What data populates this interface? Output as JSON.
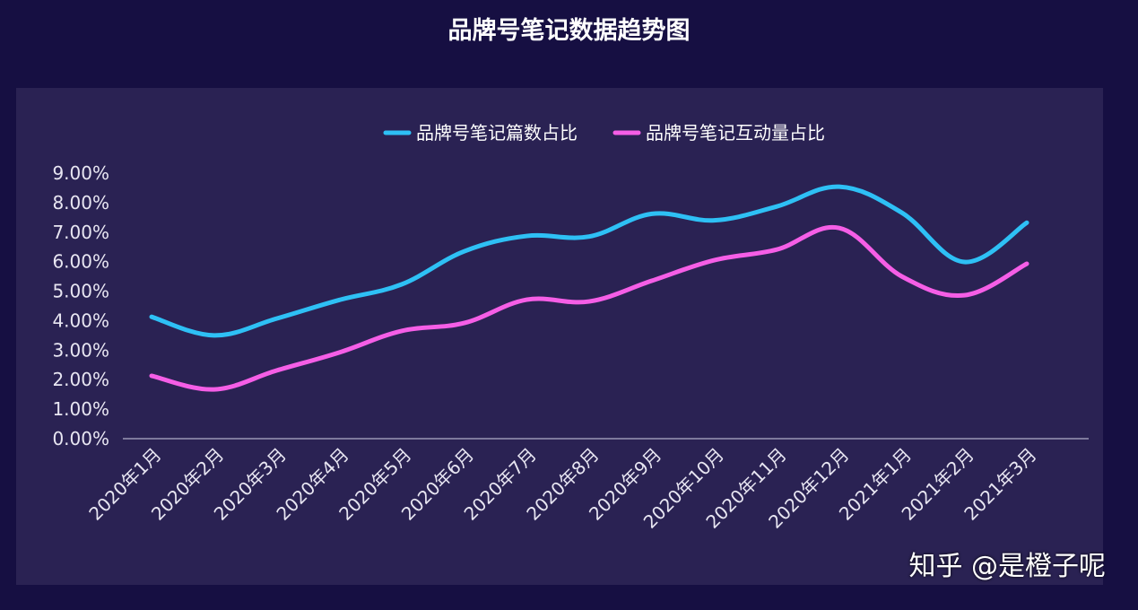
{
  "title": "品牌号笔记数据趋势图",
  "credit": "知乎 @是橙子呢",
  "chart_data": {
    "type": "line",
    "title": "品牌号笔记数据趋势图",
    "xlabel": "",
    "ylabel": "",
    "categories": [
      "2020年1月",
      "2020年2月",
      "2020年3月",
      "2020年4月",
      "2020年5月",
      "2020年6月",
      "2020年7月",
      "2020年8月",
      "2020年9月",
      "2020年10月",
      "2020年11月",
      "2020年12月",
      "2021年1月",
      "2021年2月",
      "2021年3月"
    ],
    "ylim": [
      0,
      9
    ],
    "yticks": [
      "0.00%",
      "1.00%",
      "2.00%",
      "3.00%",
      "4.00%",
      "5.00%",
      "6.00%",
      "7.00%",
      "8.00%",
      "9.00%"
    ],
    "grid": false,
    "legend_position": "top-center",
    "smooth": true,
    "series": [
      {
        "name": "品牌号笔记篇数占比",
        "color": "#2ec0f5",
        "values": [
          4.13,
          3.5,
          4.07,
          4.7,
          5.23,
          6.35,
          6.87,
          6.85,
          7.62,
          7.4,
          7.87,
          8.54,
          7.66,
          5.99,
          7.32
        ]
      },
      {
        "name": "品牌号笔记互动量占比",
        "color": "#f55ee6",
        "values": [
          2.13,
          1.67,
          2.31,
          2.92,
          3.65,
          3.92,
          4.71,
          4.65,
          5.35,
          6.05,
          6.41,
          7.14,
          5.5,
          4.86,
          5.93
        ]
      }
    ]
  }
}
